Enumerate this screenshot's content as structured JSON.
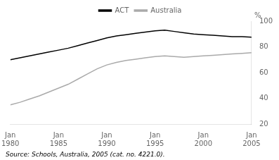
{
  "chart_data": {
    "type": "line",
    "x": [
      1980,
      1981,
      1982,
      1983,
      1984,
      1985,
      1986,
      1987,
      1988,
      1989,
      1990,
      1991,
      1992,
      1993,
      1994,
      1995,
      1996,
      1997,
      1998,
      1999,
      2000,
      2001,
      2002,
      2003,
      2004,
      2005
    ],
    "series": [
      {
        "name": "ACT",
        "color": "#000000",
        "values": [
          70,
          71.5,
          73,
          74.5,
          76,
          77.5,
          79,
          81,
          83,
          85,
          87,
          88.5,
          89.5,
          90.5,
          91.5,
          92.5,
          93,
          92,
          91,
          90,
          89.5,
          89,
          88.5,
          88,
          88,
          87.5
        ]
      },
      {
        "name": "Australia",
        "color": "#aaaaaa",
        "values": [
          35,
          37,
          39.5,
          42,
          45,
          48,
          51,
          55,
          59,
          63,
          66,
          68,
          69.5,
          70.5,
          71.5,
          72.5,
          73,
          72.5,
          72,
          72.5,
          73,
          73.5,
          74,
          74.5,
          75,
          75.5
        ]
      }
    ],
    "ylabel": "%",
    "source": "Source: Schools, Australia, 2005 (cat. no. 4221.0).",
    "xlim": [
      1980,
      2005
    ],
    "xticks": [
      {
        "value": 1980,
        "label": "Jan\n1980"
      },
      {
        "value": 1985,
        "label": "Jan\n1985"
      },
      {
        "value": 1990,
        "label": "Jan\n1990"
      },
      {
        "value": 1995,
        "label": "Jan\n1995"
      },
      {
        "value": 2000,
        "label": "Jan\n2000"
      },
      {
        "value": 2005,
        "label": "Jan\n2005"
      }
    ],
    "ylim": [
      20,
      100
    ],
    "yticks": [
      20,
      40,
      60,
      80,
      100
    ],
    "grid": false,
    "legend": "top"
  }
}
